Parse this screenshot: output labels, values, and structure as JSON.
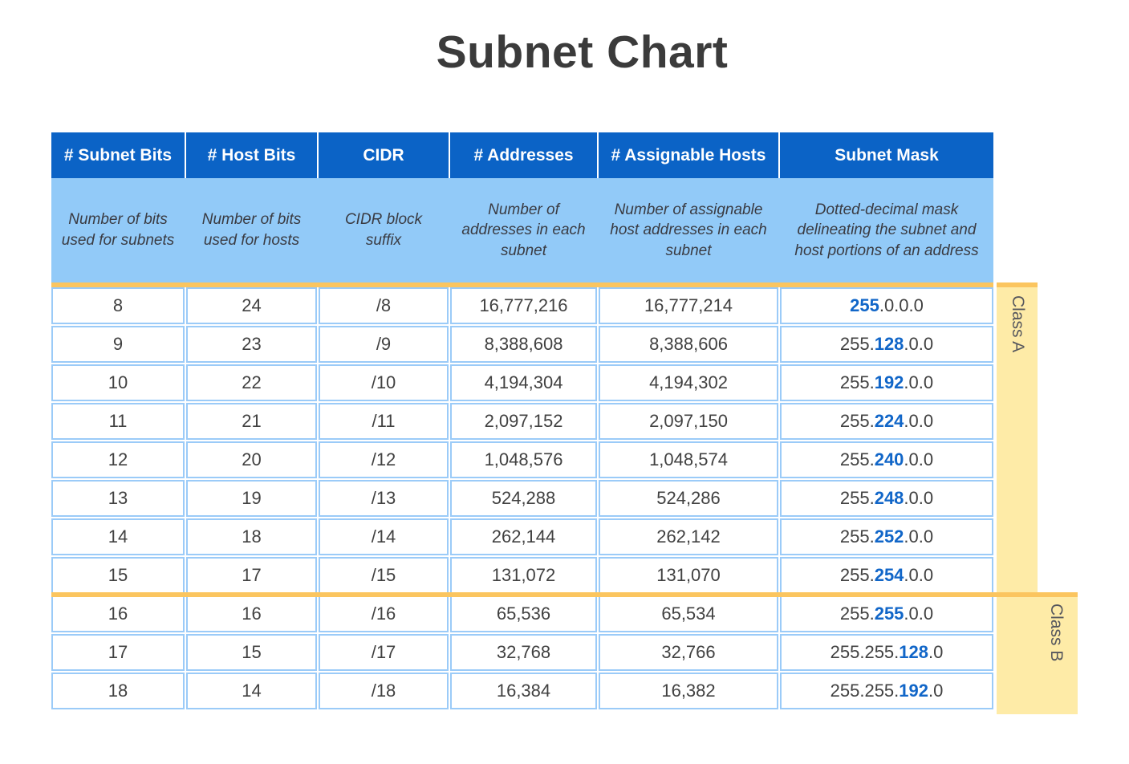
{
  "title": "Subnet Chart",
  "table": {
    "headers": [
      "# Subnet Bits",
      "# Host Bits",
      "CIDR",
      "# Addresses",
      "# Assignable Hosts",
      "Subnet Mask"
    ],
    "descriptions": [
      "Number of bits used for subnets",
      "Number of bits used for hosts",
      "CIDR block suffix",
      "Number of addresses in each subnet",
      "Number of assignable host addresses in each subnet",
      "Dotted-decimal mask delineating the subnet and host portions of an address"
    ],
    "rows": [
      {
        "subnet_bits": "8",
        "host_bits": "24",
        "cidr": "/8",
        "addresses": "16,777,216",
        "assignable_hosts": "16,777,214",
        "mask_pre": "",
        "mask_highlight": "255",
        "mask_post": ".0.0.0"
      },
      {
        "subnet_bits": "9",
        "host_bits": "23",
        "cidr": "/9",
        "addresses": "8,388,608",
        "assignable_hosts": "8,388,606",
        "mask_pre": "255.",
        "mask_highlight": "128",
        "mask_post": ".0.0"
      },
      {
        "subnet_bits": "10",
        "host_bits": "22",
        "cidr": "/10",
        "addresses": "4,194,304",
        "assignable_hosts": "4,194,302",
        "mask_pre": "255.",
        "mask_highlight": "192",
        "mask_post": ".0.0"
      },
      {
        "subnet_bits": "11",
        "host_bits": "21",
        "cidr": "/11",
        "addresses": "2,097,152",
        "assignable_hosts": "2,097,150",
        "mask_pre": "255.",
        "mask_highlight": "224",
        "mask_post": ".0.0"
      },
      {
        "subnet_bits": "12",
        "host_bits": "20",
        "cidr": "/12",
        "addresses": "1,048,576",
        "assignable_hosts": "1,048,574",
        "mask_pre": "255.",
        "mask_highlight": "240",
        "mask_post": ".0.0"
      },
      {
        "subnet_bits": "13",
        "host_bits": "19",
        "cidr": "/13",
        "addresses": "524,288",
        "assignable_hosts": "524,286",
        "mask_pre": "255.",
        "mask_highlight": "248",
        "mask_post": ".0.0"
      },
      {
        "subnet_bits": "14",
        "host_bits": "18",
        "cidr": "/14",
        "addresses": "262,144",
        "assignable_hosts": "262,142",
        "mask_pre": "255.",
        "mask_highlight": "252",
        "mask_post": ".0.0"
      },
      {
        "subnet_bits": "15",
        "host_bits": "17",
        "cidr": "/15",
        "addresses": "131,072",
        "assignable_hosts": "131,070",
        "mask_pre": "255.",
        "mask_highlight": "254",
        "mask_post": ".0.0"
      },
      {
        "subnet_bits": "16",
        "host_bits": "16",
        "cidr": "/16",
        "addresses": "65,536",
        "assignable_hosts": "65,534",
        "mask_pre": "255.",
        "mask_highlight": "255",
        "mask_post": ".0.0"
      },
      {
        "subnet_bits": "17",
        "host_bits": "15",
        "cidr": "/17",
        "addresses": "32,768",
        "assignable_hosts": "32,766",
        "mask_pre": "255.255.",
        "mask_highlight": "128",
        "mask_post": ".0"
      },
      {
        "subnet_bits": "18",
        "host_bits": "14",
        "cidr": "/18",
        "addresses": "16,384",
        "assignable_hosts": "16,382",
        "mask_pre": "255.255.",
        "mask_highlight": "192",
        "mask_post": ".0"
      }
    ]
  },
  "bands": {
    "class_a": {
      "label": "Class A"
    },
    "class_b": {
      "label": "Class B"
    }
  },
  "colors": {
    "header_blue": "#0b63c6",
    "description_light_blue": "#92caf8",
    "cell_border_blue": "#9bcbf8",
    "accent_orange": "#fbc55f",
    "band_yellow": "#feeba7",
    "highlight_blue": "#1166c8",
    "text_dark": "#414141",
    "title_dark": "#3b3b3b"
  },
  "chart_data": {
    "type": "table",
    "title": "Subnet Chart",
    "columns": [
      "# Subnet Bits",
      "# Host Bits",
      "CIDR",
      "# Addresses",
      "# Assignable Hosts",
      "Subnet Mask"
    ],
    "rows": [
      [
        "8",
        "24",
        "/8",
        "16,777,216",
        "16,777,214",
        "255.0.0.0"
      ],
      [
        "9",
        "23",
        "/9",
        "8,388,608",
        "8,388,606",
        "255.128.0.0"
      ],
      [
        "10",
        "22",
        "/10",
        "4,194,304",
        "4,194,302",
        "255.192.0.0"
      ],
      [
        "11",
        "21",
        "/11",
        "2,097,152",
        "2,097,150",
        "255.224.0.0"
      ],
      [
        "12",
        "20",
        "/12",
        "1,048,576",
        "1,048,574",
        "255.240.0.0"
      ],
      [
        "13",
        "19",
        "/13",
        "524,288",
        "524,286",
        "255.248.0.0"
      ],
      [
        "14",
        "18",
        "/14",
        "262,144",
        "262,142",
        "255.252.0.0"
      ],
      [
        "15",
        "17",
        "/15",
        "131,072",
        "131,070",
        "255.254.0.0"
      ],
      [
        "16",
        "16",
        "/16",
        "65,536",
        "65,534",
        "255.255.0.0"
      ],
      [
        "17",
        "15",
        "/17",
        "32,768",
        "32,766",
        "255.255.128.0"
      ],
      [
        "18",
        "14",
        "/18",
        "16,384",
        "16,382",
        "255.255.192.0"
      ]
    ],
    "annotations": [
      {
        "label": "Class A",
        "covers_cidr": [
          "/8",
          "/15"
        ]
      },
      {
        "label": "Class B",
        "covers_cidr": [
          "/16",
          "/18"
        ]
      }
    ]
  }
}
